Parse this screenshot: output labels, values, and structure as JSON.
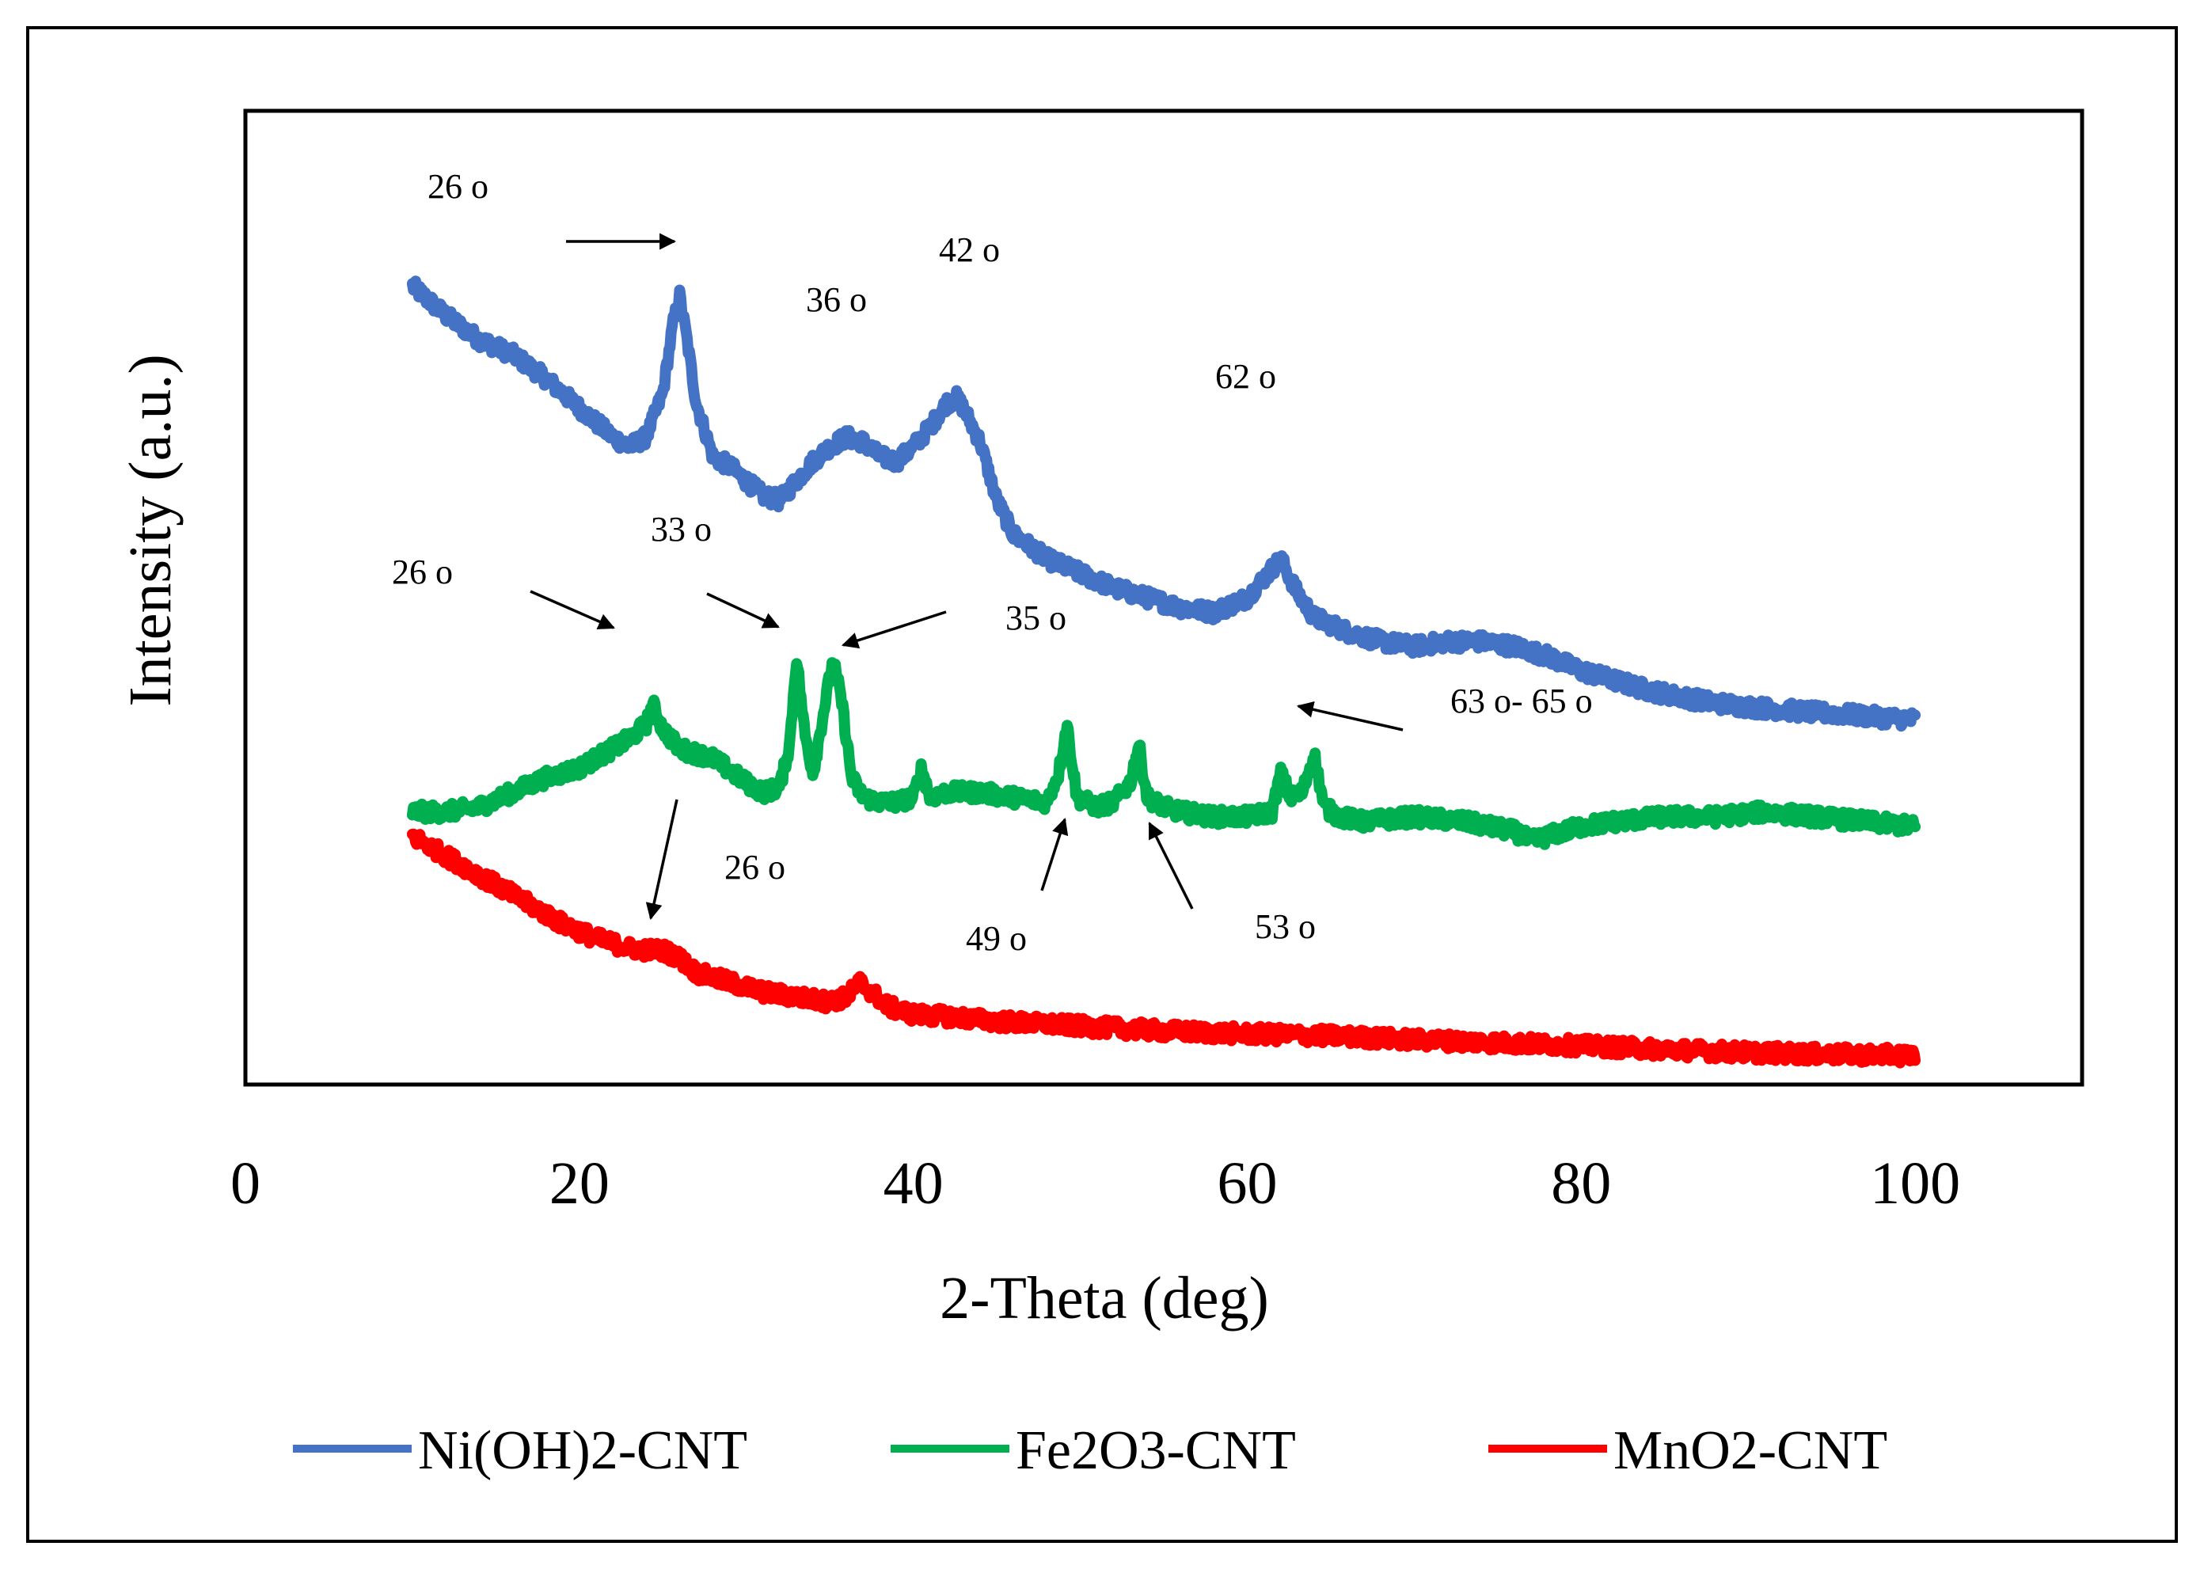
{
  "chart_data": {
    "type": "line",
    "title": "",
    "xlabel": "2-Theta (deg)",
    "ylabel": "Intensity (a.u.)",
    "xlim": [
      0,
      110
    ],
    "ylim": [
      0,
      100
    ],
    "xticks": [
      0,
      20,
      40,
      60,
      80,
      100
    ],
    "grid": false,
    "legend_position": "bottom",
    "series": [
      {
        "name": "Ni(OH)2-CNT",
        "color": "#4472C4",
        "x": [
          10,
          12,
          14,
          16,
          18,
          20,
          22,
          23,
          24,
          25,
          25.6,
          26,
          26.4,
          27,
          28,
          29,
          30,
          31,
          32,
          33,
          34,
          35,
          36,
          37,
          38,
          39,
          40,
          41,
          42,
          42.6,
          43,
          44,
          45,
          46,
          48,
          50,
          52,
          54,
          56,
          58,
          60,
          61,
          62,
          63,
          64,
          66,
          68,
          70,
          72,
          74,
          76,
          78,
          80,
          82,
          84,
          86,
          88,
          90,
          92,
          94,
          96,
          98,
          100
        ],
        "y": [
          82,
          79,
          76.5,
          75,
          72.5,
          69.5,
          66.5,
          65.5,
          66.5,
          71,
          78,
          81,
          77,
          70,
          64.5,
          63.5,
          62,
          60.5,
          60,
          62,
          64,
          65.5,
          66.5,
          66,
          64.5,
          64,
          65.5,
          67.5,
          70,
          70.5,
          69.5,
          66,
          60,
          56.5,
          54,
          52.5,
          51,
          50,
          49,
          48.5,
          50,
          52,
          54,
          50.5,
          48,
          46.5,
          45.5,
          45,
          45.5,
          45.5,
          45,
          44,
          42.5,
          41.5,
          40.5,
          39.8,
          39.2,
          38.8,
          38.5,
          38.2,
          38,
          37.7,
          37.5
        ]
      },
      {
        "name": "Fe2O3-CNT",
        "color": "#00B050",
        "x": [
          10,
          12,
          14,
          16,
          18,
          20,
          22,
          23,
          24,
          24.4,
          25,
          26,
          28,
          30,
          31,
          32,
          32.6,
          33,
          33.5,
          34,
          34.8,
          35.2,
          35.7,
          36.3,
          37,
          38,
          39,
          40,
          40.5,
          41,
          42,
          44,
          46,
          48,
          48.7,
          49.2,
          49.8,
          51,
          52,
          53,
          53.5,
          54,
          55,
          56,
          58,
          60,
          61.5,
          62,
          62.6,
          63.3,
          64,
          64.6,
          65.5,
          67,
          70,
          73,
          76,
          77,
          78,
          80,
          82,
          85,
          88,
          91,
          94,
          97,
          100
        ],
        "y": [
          28,
          28,
          28.5,
          30,
          31.5,
          32.5,
          34.5,
          35.5,
          37,
          39,
          36.5,
          34.5,
          33.5,
          31,
          30,
          30.5,
          35,
          44,
          36,
          32,
          40,
          43.5,
          39.5,
          31.5,
          29.5,
          29,
          29,
          29.5,
          32.5,
          29.5,
          30,
          30,
          29.5,
          29,
          32,
          37,
          29.5,
          28.5,
          29,
          31,
          35,
          29.5,
          28.5,
          28,
          27.5,
          27.5,
          28,
          32,
          29.5,
          30,
          34,
          28.5,
          27.5,
          27,
          27.5,
          27,
          26,
          25,
          25.5,
          26.5,
          27,
          27.5,
          27.5,
          28,
          27.5,
          27,
          26.5
        ]
      },
      {
        "name": "MnO2-CNT",
        "color": "#FF0000",
        "x": [
          10,
          11,
          13,
          15,
          17,
          19,
          21,
          23,
          24,
          25,
          26,
          27,
          29,
          31,
          33,
          35,
          36,
          36.8,
          37.5,
          38.5,
          40,
          42,
          45,
          50,
          55,
          60,
          65,
          70,
          75,
          80,
          85,
          90,
          95,
          100
        ],
        "y": [
          25.5,
          24.5,
          22.5,
          20.5,
          18.5,
          16.5,
          15,
          14,
          13.8,
          13.8,
          13,
          11.5,
          10.5,
          9.5,
          9,
          8.5,
          9,
          10.5,
          9.5,
          8,
          7.2,
          7,
          6.5,
          6,
          5.5,
          5.2,
          5,
          4.6,
          4.3,
          4,
          3.6,
          3.3,
          3.1,
          3
        ]
      }
    ],
    "annotations": [
      {
        "label": "26 o",
        "series": "Ni(OH)2-CNT",
        "peak_x": 26
      },
      {
        "label": "36 o",
        "series": "Ni(OH)2-CNT",
        "peak_x": 36
      },
      {
        "label": "42 o",
        "series": "Ni(OH)2-CNT",
        "peak_x": 42
      },
      {
        "label": "62 o",
        "series": "Ni(OH)2-CNT",
        "peak_x": 62
      },
      {
        "label": "26 o",
        "series": "Fe2O3-CNT",
        "peak_x": 24
      },
      {
        "label": "33 o",
        "series": "Fe2O3-CNT",
        "peak_x": 33
      },
      {
        "label": "35 o",
        "series": "Fe2O3-CNT",
        "peak_x": 35.2
      },
      {
        "label": "63 o- 65 o",
        "series": "Fe2O3-CNT",
        "peak_x": 64
      },
      {
        "label": "49 o",
        "series": "Fe2O3-CNT",
        "peak_x": 49.2
      },
      {
        "label": "53 o",
        "series": "Fe2O3-CNT",
        "peak_x": 53.5
      },
      {
        "label": "26 o",
        "series": "MnO2-CNT",
        "peak_x": 24
      }
    ]
  }
}
